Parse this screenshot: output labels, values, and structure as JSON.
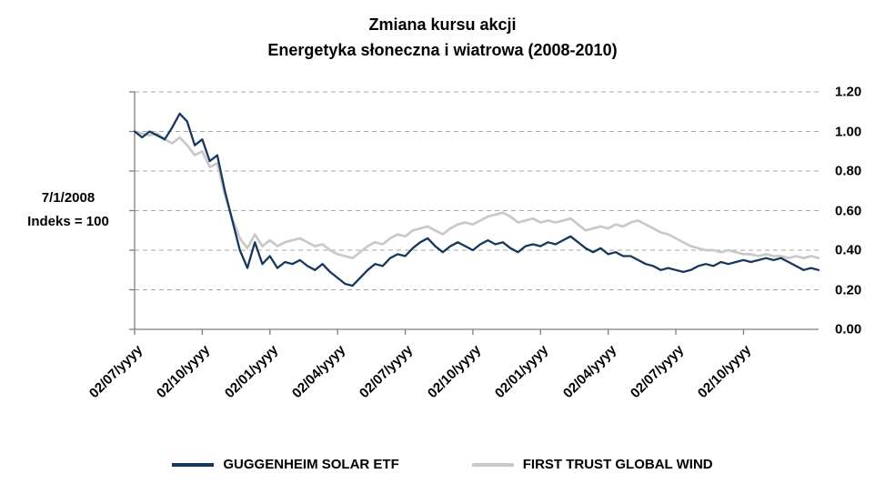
{
  "title": {
    "line1": "Zmiana kursu akcji",
    "line2": "Energetyka słoneczna i wiatrowa (2008-2010)"
  },
  "annotation": {
    "line1": "7/1/2008",
    "line2": "Indeks = 100"
  },
  "chart_data": {
    "type": "line",
    "title": "Zmiana kursu akcji — Energetyka słoneczna i wiatrowa (2008-2010)",
    "xlabel": "",
    "ylabel": "",
    "ylim": [
      0.0,
      1.2
    ],
    "grid": "dashed-horizontal",
    "legend_position": "bottom",
    "x_span_months": 30.33,
    "x_tick_labels": [
      "02/07/yyyy",
      "02/10/yyyy",
      "02/01/yyyy",
      "02/04/yyyy",
      "02/07/yyyy",
      "02/10/yyyy",
      "02/01/yyyy",
      "02/04/yyyy",
      "02/07/yyyy",
      "02/10/yyyy"
    ],
    "y_ticks": [
      0.0,
      0.2,
      0.4,
      0.6,
      0.8,
      1.0,
      1.2
    ],
    "y_tick_labels": [
      "0.00",
      "0.20",
      "0.40",
      "0.60",
      "0.80",
      "1.00",
      "1.20"
    ],
    "colors": {
      "grid": "#A6A6A6",
      "axis": "#808080",
      "text": "#000000"
    },
    "series": [
      {
        "name": "GUGGENHEIM SOLAR ETF",
        "color": "#17375E",
        "values": [
          1.0,
          0.97,
          1.0,
          0.98,
          0.96,
          1.02,
          1.09,
          1.05,
          0.93,
          0.96,
          0.85,
          0.88,
          0.7,
          0.55,
          0.4,
          0.31,
          0.44,
          0.33,
          0.37,
          0.31,
          0.34,
          0.33,
          0.35,
          0.32,
          0.3,
          0.33,
          0.29,
          0.26,
          0.23,
          0.22,
          0.26,
          0.3,
          0.33,
          0.32,
          0.36,
          0.38,
          0.37,
          0.41,
          0.44,
          0.46,
          0.42,
          0.39,
          0.42,
          0.44,
          0.42,
          0.4,
          0.43,
          0.45,
          0.43,
          0.44,
          0.41,
          0.39,
          0.42,
          0.43,
          0.42,
          0.44,
          0.43,
          0.45,
          0.47,
          0.44,
          0.41,
          0.39,
          0.41,
          0.38,
          0.39,
          0.37,
          0.37,
          0.35,
          0.33,
          0.32,
          0.3,
          0.31,
          0.3,
          0.29,
          0.3,
          0.32,
          0.33,
          0.32,
          0.34,
          0.33,
          0.34,
          0.35,
          0.34,
          0.35,
          0.36,
          0.35,
          0.36,
          0.34,
          0.32,
          0.3,
          0.31,
          0.3
        ]
      },
      {
        "name": "FIRST TRUST GLOBAL WIND",
        "color": "#C9C9C9",
        "values": [
          1.0,
          0.99,
          0.98,
          0.99,
          0.96,
          0.94,
          0.97,
          0.93,
          0.88,
          0.9,
          0.82,
          0.84,
          0.68,
          0.56,
          0.46,
          0.41,
          0.48,
          0.42,
          0.45,
          0.42,
          0.44,
          0.45,
          0.46,
          0.44,
          0.42,
          0.43,
          0.4,
          0.38,
          0.37,
          0.36,
          0.39,
          0.42,
          0.44,
          0.43,
          0.46,
          0.48,
          0.47,
          0.5,
          0.51,
          0.52,
          0.5,
          0.48,
          0.51,
          0.53,
          0.54,
          0.53,
          0.55,
          0.57,
          0.58,
          0.59,
          0.57,
          0.54,
          0.55,
          0.56,
          0.54,
          0.55,
          0.54,
          0.55,
          0.56,
          0.53,
          0.5,
          0.51,
          0.52,
          0.51,
          0.53,
          0.52,
          0.54,
          0.55,
          0.53,
          0.51,
          0.49,
          0.48,
          0.46,
          0.44,
          0.42,
          0.41,
          0.4,
          0.4,
          0.39,
          0.4,
          0.39,
          0.38,
          0.38,
          0.37,
          0.38,
          0.37,
          0.37,
          0.36,
          0.37,
          0.36,
          0.37,
          0.36
        ]
      }
    ]
  }
}
